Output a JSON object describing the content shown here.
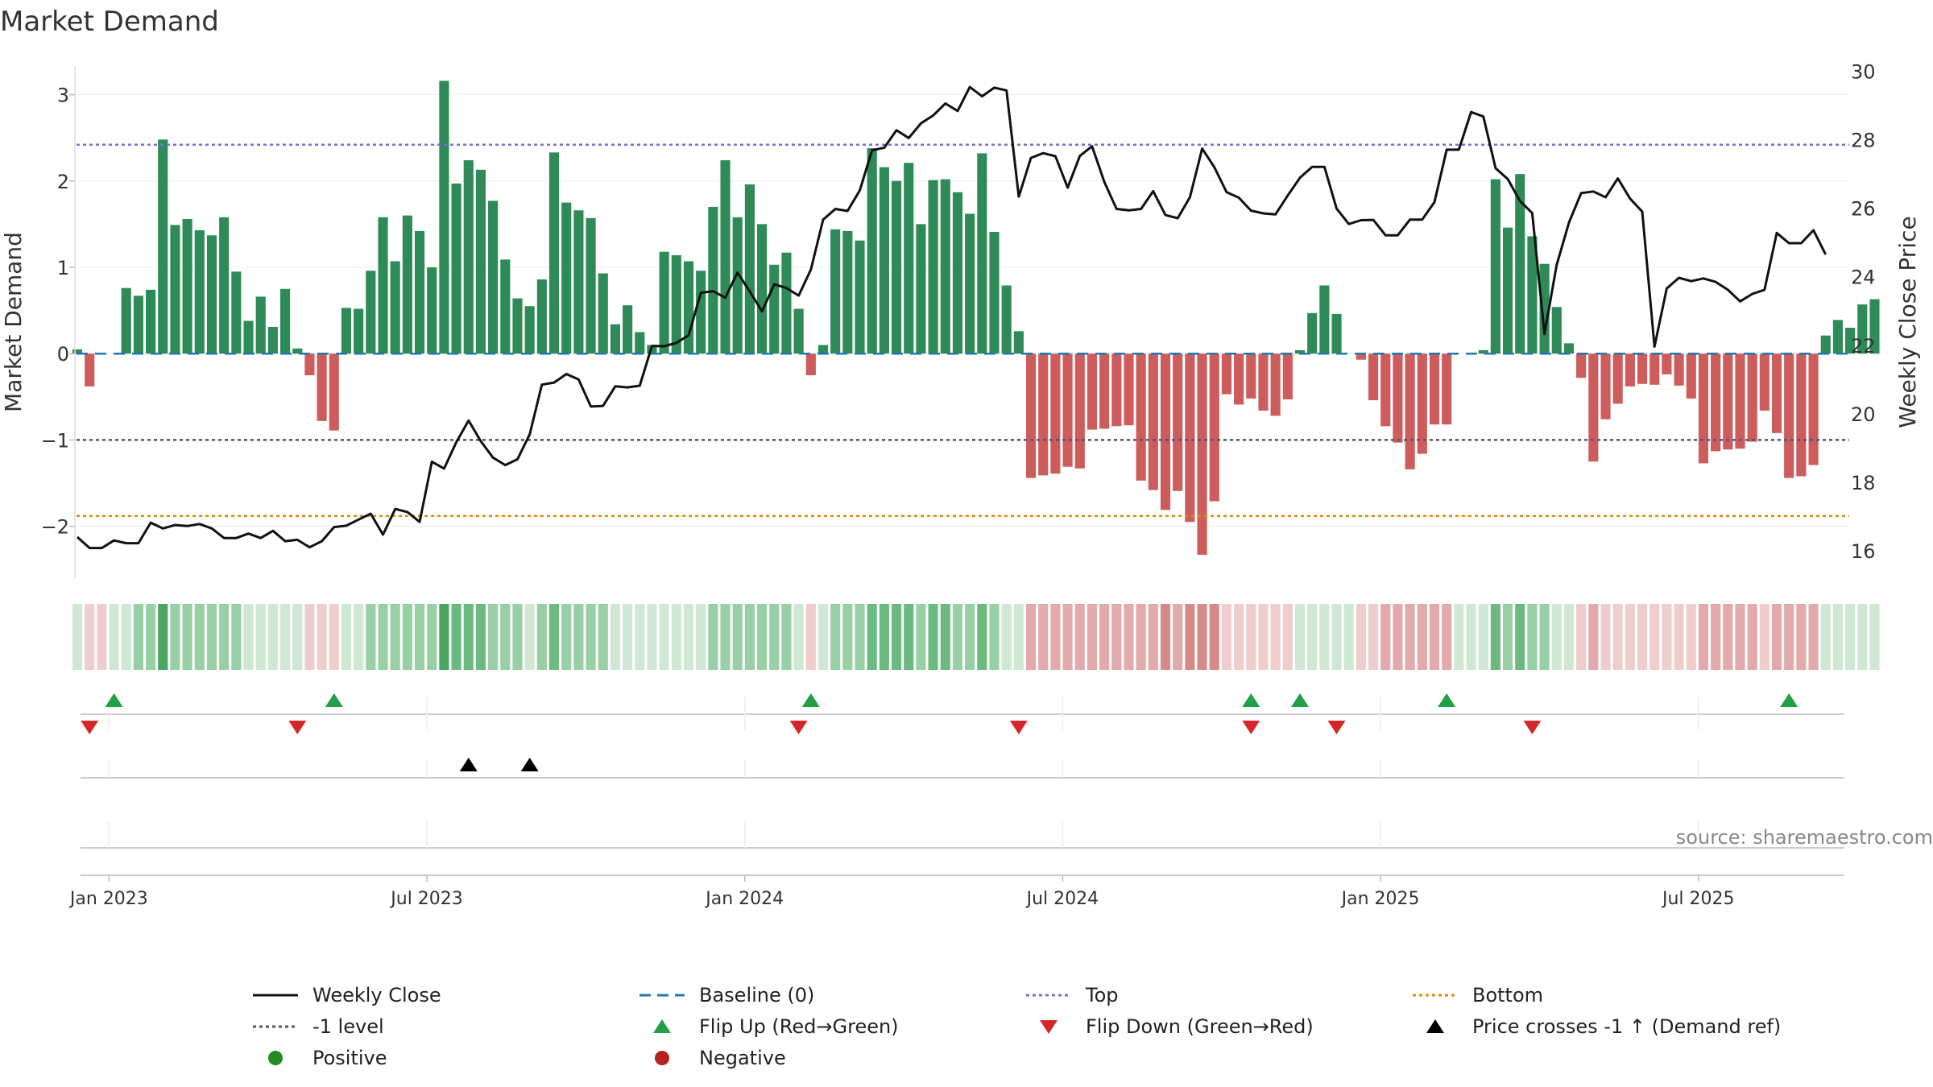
{
  "chart_data": {
    "type": "bar",
    "title": "Market Demand",
    "ylabel": "Market Demand",
    "y2label": "Weekly Close Price",
    "ylim": [
      -2.6,
      3.35
    ],
    "y2lim": [
      15.2,
      30.2
    ],
    "y_ticks": [
      -2,
      -1,
      0,
      1,
      2,
      3
    ],
    "y_tick_labels": [
      "−2",
      "−1",
      "0",
      "1",
      "2",
      "3"
    ],
    "y2_ticks": [
      16,
      18,
      20,
      22,
      24,
      26,
      28,
      30
    ],
    "y2_tick_labels": [
      "16",
      "18",
      "20",
      "22",
      "24",
      "26",
      "28",
      "30"
    ],
    "x_tick_positions": [
      2,
      28,
      54,
      80,
      106,
      132
    ],
    "x_tick_labels": [
      "Jan 2023",
      "Jul 2023",
      "Jan 2024",
      "Jul 2024",
      "Jan 2025",
      "Jul 2025"
    ],
    "reference_lines": {
      "baseline": 0,
      "top": 2.42,
      "bottom": -1.88,
      "minus_one": -1
    },
    "demand": [
      0.05,
      -0.38,
      0,
      0,
      0.76,
      0.67,
      0.74,
      2.48,
      1.49,
      1.56,
      1.43,
      1.37,
      1.58,
      0.95,
      0.38,
      0.66,
      0.31,
      0.75,
      0.06,
      -0.25,
      -0.78,
      -0.89,
      0.53,
      0.52,
      0.96,
      1.58,
      1.07,
      1.6,
      1.42,
      1.0,
      3.16,
      1.97,
      2.24,
      2.13,
      1.77,
      1.09,
      0.64,
      0.55,
      0.86,
      2.33,
      1.75,
      1.66,
      1.57,
      0.93,
      0.34,
      0.56,
      0.25,
      0.1,
      1.18,
      1.14,
      1.07,
      0.96,
      1.7,
      2.24,
      1.58,
      1.96,
      1.5,
      1.03,
      1.17,
      0.52,
      -0.25,
      0.1,
      1.44,
      1.42,
      1.31,
      2.38,
      2.16,
      2.0,
      2.21,
      1.5,
      2.01,
      2.02,
      1.87,
      1.62,
      2.32,
      1.41,
      0.79,
      0.26,
      -1.44,
      -1.41,
      -1.39,
      -1.31,
      -1.33,
      -0.88,
      -0.87,
      -0.84,
      -0.83,
      -1.47,
      -1.58,
      -1.81,
      -1.59,
      -1.95,
      -2.33,
      -1.71,
      -0.47,
      -0.59,
      -0.52,
      -0.66,
      -0.72,
      -0.53,
      0.04,
      0.47,
      0.79,
      0.46,
      0.0,
      -0.07,
      -0.54,
      -0.84,
      -1.03,
      -1.34,
      -1.16,
      -0.82,
      -0.82,
      0.0,
      0.0,
      0.04,
      2.02,
      1.46,
      2.08,
      1.36,
      1.04,
      0.54,
      0.12,
      -0.28,
      -1.25,
      -0.76,
      -0.58,
      -0.38,
      -0.35,
      -0.36,
      -0.24,
      -0.37,
      -0.52,
      -1.27,
      -1.13,
      -1.11,
      -1.1,
      -1.02,
      -0.66,
      -0.92,
      -1.44,
      -1.42,
      -1.29,
      0.21,
      0.39,
      0.3,
      0.57,
      0.63
    ],
    "close": [
      16.4,
      16.08,
      16.08,
      16.3,
      16.22,
      16.22,
      16.82,
      16.65,
      16.75,
      16.72,
      16.78,
      16.65,
      16.37,
      16.37,
      16.5,
      16.37,
      16.58,
      16.28,
      16.32,
      16.1,
      16.28,
      16.69,
      16.73,
      16.91,
      17.08,
      16.47,
      17.22,
      17.13,
      16.84,
      18.6,
      18.4,
      19.17,
      19.8,
      19.2,
      18.72,
      18.5,
      18.67,
      19.4,
      20.85,
      20.91,
      21.16,
      21.0,
      20.21,
      20.23,
      20.8,
      20.77,
      20.82,
      21.98,
      21.97,
      22.07,
      22.29,
      23.53,
      23.58,
      23.39,
      24.12,
      23.57,
      22.99,
      23.78,
      23.67,
      23.45,
      24.21,
      25.67,
      25.98,
      25.92,
      26.52,
      27.69,
      27.77,
      28.28,
      28.05,
      28.48,
      28.71,
      29.06,
      28.84,
      29.54,
      29.27,
      29.52,
      29.44,
      26.34,
      27.47,
      27.61,
      27.52,
      26.6,
      27.53,
      27.81,
      26.77,
      25.98,
      25.94,
      25.98,
      26.5,
      25.8,
      25.71,
      26.32,
      27.74,
      27.2,
      26.47,
      26.31,
      25.93,
      25.85,
      25.82,
      26.37,
      26.89,
      27.21,
      27.21,
      25.99,
      25.54,
      25.65,
      25.66,
      25.21,
      25.21,
      25.67,
      25.67,
      26.18,
      27.71,
      27.71,
      28.81,
      28.68,
      27.17,
      26.85,
      26.21,
      25.86,
      22.33,
      24.35,
      25.58,
      26.44,
      26.49,
      26.32,
      26.87,
      26.28,
      25.9,
      21.96,
      23.66,
      23.97,
      23.87,
      23.95,
      23.85,
      23.62,
      23.28,
      23.5,
      23.62,
      25.28,
      24.98,
      24.98,
      25.36,
      24.65
    ],
    "heat_levels": [
      1,
      -1,
      -1,
      1,
      1,
      2,
      2,
      4,
      2,
      2,
      2,
      2,
      2,
      2,
      1,
      1,
      1,
      1,
      1,
      -1,
      -1,
      -1,
      1,
      1,
      2,
      2,
      2,
      2,
      2,
      2,
      4,
      3,
      3,
      3,
      2,
      2,
      2,
      1,
      2,
      3,
      2,
      2,
      2,
      2,
      1,
      1,
      1,
      1,
      1,
      1,
      1,
      1,
      2,
      2,
      2,
      2,
      2,
      2,
      2,
      1,
      -1,
      1,
      2,
      2,
      2,
      3,
      3,
      3,
      3,
      2,
      3,
      3,
      2,
      2,
      3,
      2,
      1,
      1,
      -2,
      -2,
      -2,
      -2,
      -2,
      -2,
      -2,
      -2,
      -2,
      -2,
      -2,
      -3,
      -2,
      -3,
      -3,
      -3,
      -1,
      -1,
      -1,
      -1,
      -1,
      -1,
      1,
      1,
      1,
      1,
      1,
      -1,
      -1,
      -2,
      -2,
      -2,
      -2,
      -2,
      -2,
      1,
      1,
      1,
      3,
      2,
      3,
      2,
      2,
      1,
      1,
      -1,
      -2,
      -1,
      -1,
      -1,
      -1,
      -1,
      -1,
      -1,
      -1,
      -2,
      -2,
      -2,
      -2,
      -2,
      -1,
      -2,
      -2,
      -2,
      -2,
      1,
      1,
      1,
      1,
      1
    ],
    "flip_up_weeks": [
      3,
      21,
      60,
      96,
      100,
      112,
      140
    ],
    "flip_down_weeks": [
      1,
      18,
      59,
      77,
      96,
      103,
      119
    ],
    "price_cross_weeks": [
      32,
      37
    ],
    "legend": [
      {
        "key": "close",
        "label": "Weekly Close"
      },
      {
        "key": "baseline",
        "label": "Baseline (0)"
      },
      {
        "key": "top",
        "label": "Top"
      },
      {
        "key": "bottom",
        "label": "Bottom"
      },
      {
        "key": "minus_one",
        "label": "-1 level"
      },
      {
        "key": "flip_up",
        "label": "Flip Up (Red→Green)"
      },
      {
        "key": "flip_down",
        "label": "Flip Down (Green→Red)"
      },
      {
        "key": "cross",
        "label": "Price crosses -1 ↑ (Demand ref)"
      },
      {
        "key": "positive",
        "label": "Positive"
      },
      {
        "key": "negative",
        "label": "Negative"
      }
    ],
    "source": "source: sharemaestro.com"
  },
  "colors": {
    "positive": "#2e8b57",
    "negative": "#cd5c5c",
    "close": "#111111",
    "baseline": "#1f77b4",
    "top": "#7b6fd0",
    "bottom": "#e08a0b",
    "minus_one": "#555566",
    "flip_up": "#22a046",
    "flip_down": "#d62728",
    "cross": "#000000",
    "dot_positive": "#228b22",
    "dot_negative": "#b22222"
  }
}
